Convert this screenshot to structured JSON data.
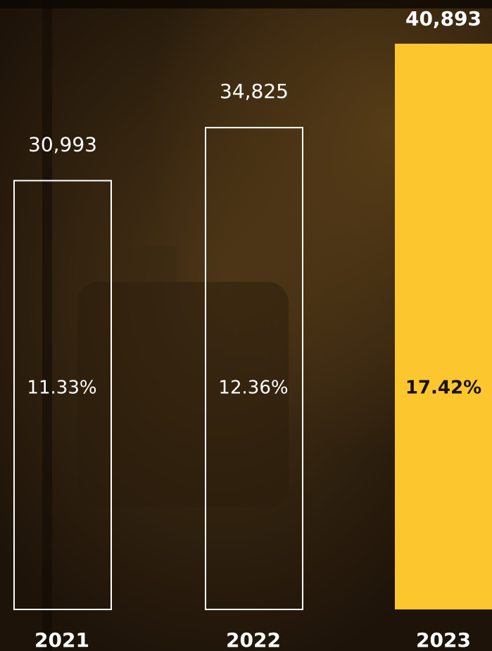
{
  "chart_data": {
    "type": "bar",
    "categories": [
      "2021",
      "2022",
      "2023"
    ],
    "values": [
      30993,
      34825,
      40893
    ],
    "value_labels": [
      "30,993",
      "34,825",
      "40,893"
    ],
    "shares": {
      "values": [
        11.33,
        12.36,
        17.42
      ],
      "value_labels": [
        "11.33%",
        "12.36%",
        "17.42%"
      ]
    },
    "color": "#ffffff",
    "highlight": "2023",
    "highlight_color": "#fcc62f"
  }
}
